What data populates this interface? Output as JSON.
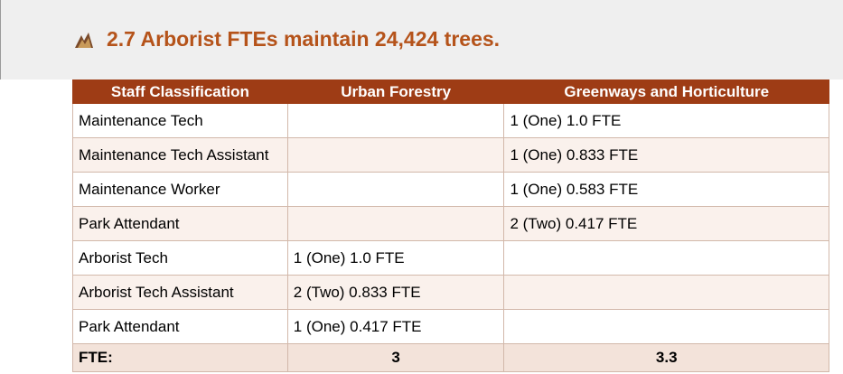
{
  "header": {
    "title": "2.7 Arborist FTEs maintain 24,424 trees."
  },
  "table": {
    "columns": [
      "Staff Classification",
      "Urban Forestry",
      "Greenways and Horticulture"
    ],
    "rows": [
      [
        "Maintenance Tech",
        null,
        "1 (One) 1.0 FTE"
      ],
      [
        "Maintenance Tech Assistant",
        null,
        "1 (One) 0.833 FTE"
      ],
      [
        "Maintenance Worker",
        null,
        "1 (One) 0.583 FTE"
      ],
      [
        "Park Attendant",
        null,
        "2 (Two) 0.417 FTE"
      ],
      [
        "Arborist Tech",
        "1 (One) 1.0 FTE",
        null
      ],
      [
        "Arborist Tech Assistant",
        "2 (Two) 0.833 FTE",
        null
      ],
      [
        "Park Attendant",
        "1 (One) 0.417 FTE",
        null
      ]
    ],
    "total": [
      "FTE:",
      "3",
      "3.3"
    ]
  }
}
